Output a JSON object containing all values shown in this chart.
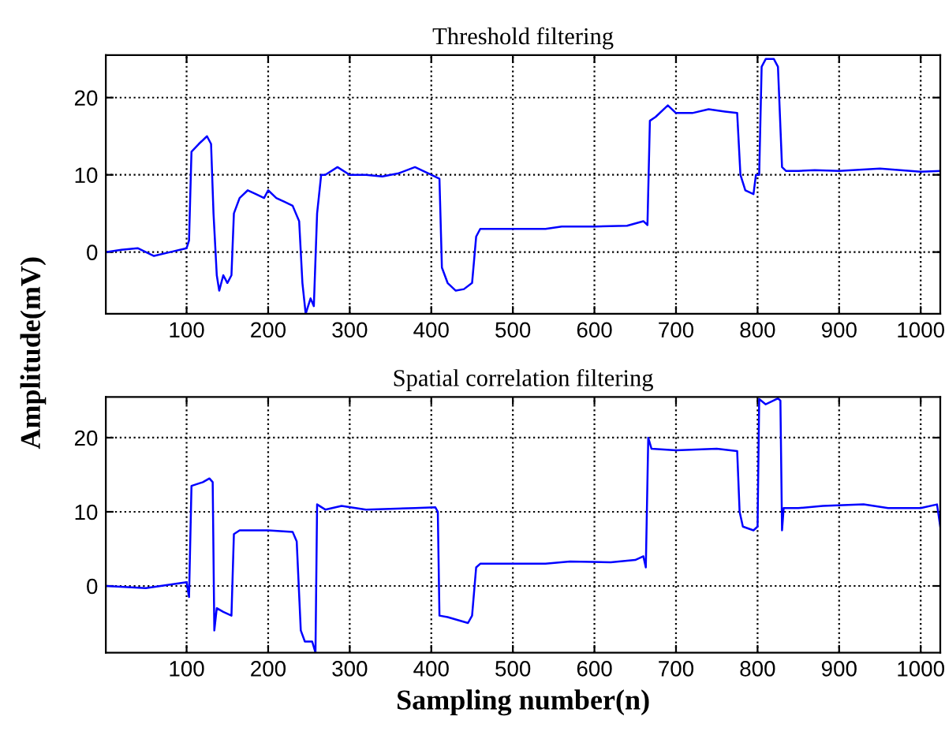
{
  "chart_data": [
    {
      "type": "line",
      "title": "Threshold filtering",
      "ylabel": "Amplitude(mV)",
      "xlim": [
        1,
        1024
      ],
      "ylim": [
        -8,
        25.5
      ],
      "xticks": [
        100,
        200,
        300,
        400,
        500,
        600,
        700,
        800,
        900,
        1000
      ],
      "yticks": [
        0,
        10,
        20
      ],
      "grid": true,
      "legend": false,
      "line_style": "solid",
      "series": [
        {
          "color": "#0000ff",
          "x": [
            1,
            20,
            40,
            60,
            80,
            100,
            103,
            106,
            115,
            125,
            130,
            133,
            137,
            140,
            145,
            150,
            155,
            158,
            165,
            175,
            185,
            195,
            200,
            210,
            220,
            230,
            238,
            242,
            246,
            252,
            256,
            260,
            265,
            270,
            285,
            300,
            320,
            340,
            360,
            380,
            400,
            410,
            413,
            420,
            430,
            440,
            450,
            455,
            460,
            500,
            540,
            560,
            600,
            640,
            660,
            665,
            668,
            675,
            690,
            700,
            720,
            740,
            760,
            775,
            779,
            785,
            795,
            798,
            802,
            805,
            810,
            820,
            825,
            830,
            835,
            850,
            870,
            900,
            950,
            1000,
            1024
          ],
          "values": [
            0,
            0.3,
            0.5,
            -0.5,
            0,
            0.5,
            1.5,
            13,
            14,
            15,
            14,
            5,
            -3,
            -5,
            -3,
            -4,
            -3,
            5,
            7,
            8,
            7.5,
            7,
            8,
            7,
            6.5,
            6,
            4,
            -4,
            -8,
            -6,
            -7,
            5,
            10,
            10,
            11,
            10,
            10,
            9.8,
            10.2,
            11,
            10,
            9.5,
            -2,
            -4,
            -5,
            -4.8,
            -4,
            2,
            3,
            3,
            3,
            3.3,
            3.3,
            3.4,
            4,
            3.5,
            17,
            17.5,
            19,
            18,
            18,
            18.5,
            18.2,
            18,
            10,
            8,
            7.5,
            10,
            10,
            24,
            25,
            25,
            24,
            11,
            10.5,
            10.5,
            10.6,
            10.5,
            10.8,
            10.4,
            10.5
          ]
        }
      ]
    },
    {
      "type": "line",
      "title": "Spatial correlation filtering",
      "xlabel": "Sampling number(n)",
      "xlim": [
        1,
        1024
      ],
      "ylim": [
        -9,
        25.5
      ],
      "xticks": [
        100,
        200,
        300,
        400,
        500,
        600,
        700,
        800,
        900,
        1000
      ],
      "yticks": [
        0,
        10,
        20
      ],
      "grid": true,
      "legend": false,
      "line_style": "solid",
      "series": [
        {
          "color": "#0000ff",
          "x": [
            1,
            50,
            100,
            103,
            106,
            120,
            128,
            132,
            134,
            137,
            145,
            155,
            158,
            165,
            200,
            230,
            235,
            240,
            245,
            254,
            258,
            260,
            270,
            290,
            320,
            380,
            405,
            408,
            410,
            420,
            445,
            450,
            455,
            460,
            500,
            540,
            570,
            620,
            650,
            660,
            663,
            666,
            670,
            700,
            750,
            775,
            778,
            782,
            795,
            800,
            802,
            810,
            825,
            828,
            830,
            832,
            850,
            880,
            930,
            960,
            1000,
            1020,
            1024
          ],
          "values": [
            0,
            -0.3,
            0.5,
            -1.5,
            13.5,
            14,
            14.5,
            14,
            -6,
            -3,
            -3.5,
            -4,
            7,
            7.5,
            7.5,
            7.3,
            6,
            -6,
            -7.5,
            -7.5,
            -9,
            11,
            10.3,
            10.8,
            10.3,
            10.5,
            10.6,
            10,
            -4,
            -4.2,
            -5,
            -4,
            2.5,
            3,
            3,
            3,
            3.3,
            3.2,
            3.5,
            4,
            2.5,
            20,
            18.5,
            18.3,
            18.5,
            18.2,
            10,
            8,
            7.5,
            8,
            25.2,
            24.5,
            25.3,
            25,
            7.5,
            10.5,
            10.5,
            10.8,
            11,
            10.5,
            10.5,
            11,
            8
          ]
        }
      ]
    }
  ]
}
